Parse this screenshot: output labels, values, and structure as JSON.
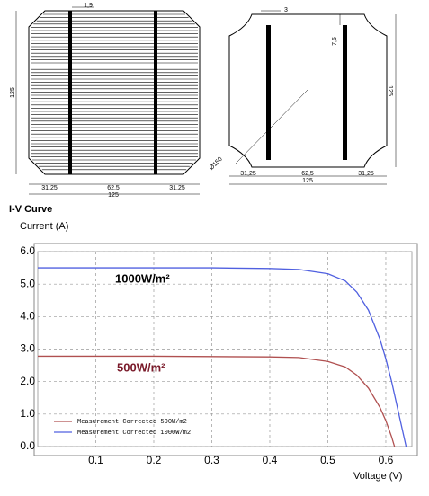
{
  "drawings": {
    "left": {
      "busbar_width": "1,9",
      "height": "125",
      "segments": [
        "31,25",
        "62,5",
        "31,25"
      ],
      "width": "125"
    },
    "right": {
      "busbar_width": "3",
      "offset": "7,5",
      "height": "125",
      "diameter": "Ø150",
      "segments": [
        "31,25",
        "62,5",
        "31,25"
      ],
      "width": "125"
    }
  },
  "chart_data": {
    "type": "line",
    "title": "I-V Curve",
    "y_label": "Current (A)",
    "x_label": "Voltage (V)",
    "xlim": [
      0,
      0.645
    ],
    "xticks": [
      0.1,
      0.2,
      0.3,
      0.4,
      0.5,
      0.6
    ],
    "ylim": [
      0,
      6
    ],
    "yticks": [
      {
        "value": 0,
        "label": "0.0"
      },
      {
        "value": 1,
        "label": "1.0"
      },
      {
        "value": 2,
        "label": "2.0"
      },
      {
        "value": 3,
        "label": "3.0"
      },
      {
        "value": 4,
        "label": "4.0"
      },
      {
        "value": 5,
        "label": "5.0"
      },
      {
        "value": 6,
        "label": "6.0"
      }
    ],
    "grid": true,
    "legend": "lower left",
    "series": [
      {
        "name": "Measurement Corrected 500W/m2",
        "color": "#b05050",
        "x": [
          0,
          0.1,
          0.2,
          0.3,
          0.4,
          0.45,
          0.5,
          0.53,
          0.55,
          0.57,
          0.59,
          0.6,
          0.61,
          0.615
        ],
        "values": [
          2.78,
          2.78,
          2.78,
          2.77,
          2.76,
          2.74,
          2.62,
          2.45,
          2.2,
          1.8,
          1.2,
          0.8,
          0.3,
          0
        ]
      },
      {
        "name": "Measurement Corrected 1000W/m2",
        "color": "#5060e0",
        "x": [
          0,
          0.1,
          0.2,
          0.3,
          0.4,
          0.45,
          0.5,
          0.53,
          0.55,
          0.57,
          0.59,
          0.6,
          0.61,
          0.62,
          0.635
        ],
        "values": [
          5.5,
          5.5,
          5.5,
          5.5,
          5.48,
          5.45,
          5.32,
          5.1,
          4.75,
          4.2,
          3.3,
          2.7,
          2.0,
          1.2,
          0
        ]
      }
    ],
    "annotations": [
      {
        "text": "1000W/m²",
        "color": "#000000"
      },
      {
        "text": "500W/m²",
        "color": "#7a1a2a"
      }
    ]
  }
}
